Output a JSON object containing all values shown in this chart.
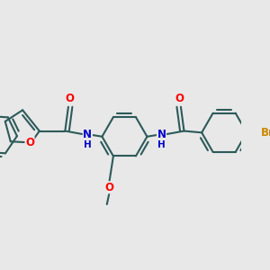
{
  "background_color": "#e8e8e8",
  "bond_color": "#2d5a5a",
  "atom_colors": {
    "O": "#ff0000",
    "N": "#0000cc",
    "Br": "#cc8800",
    "C": "#2d5a5a",
    "H": "#2d5a5a"
  },
  "line_width": 1.5,
  "font_size": 8.5,
  "fig_width": 3.0,
  "fig_height": 3.0,
  "dpi": 100
}
